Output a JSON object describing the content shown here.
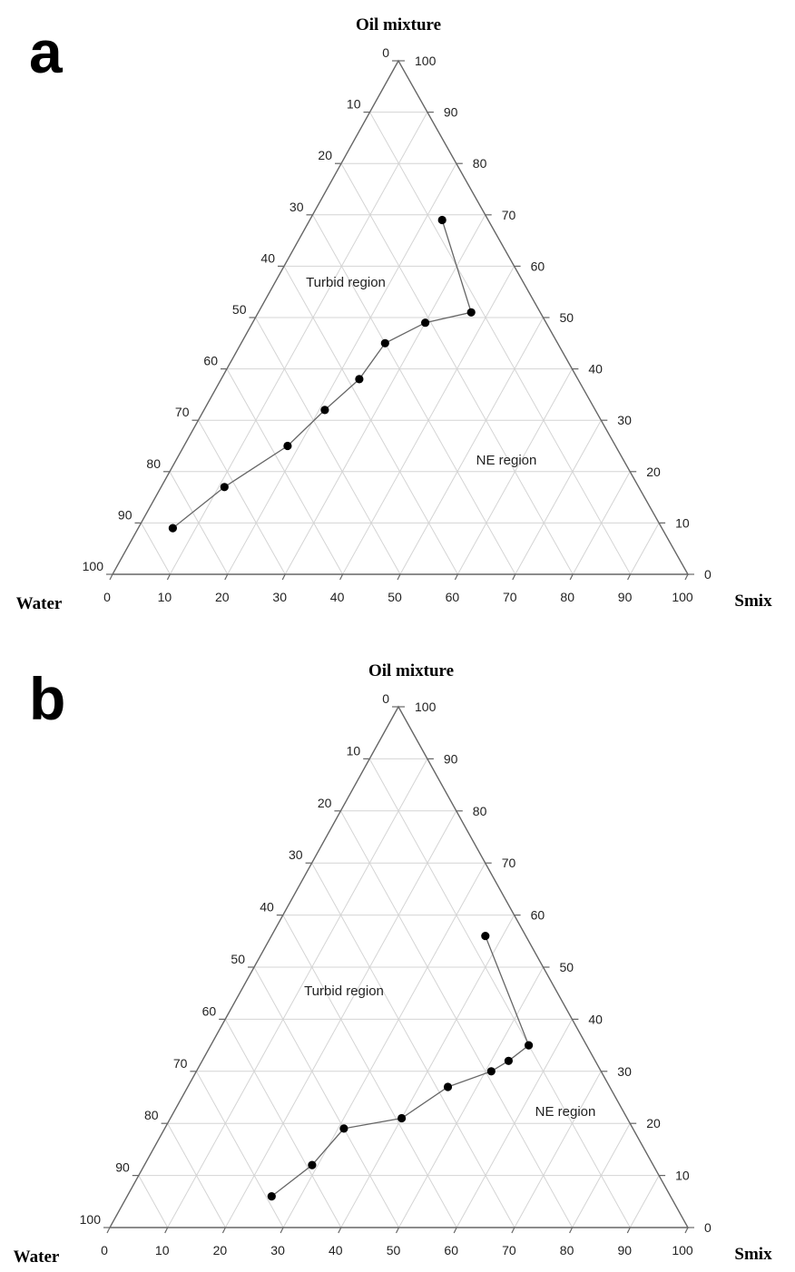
{
  "chart_data": [
    {
      "type": "scatter",
      "ternary": true,
      "panel_letter": "a",
      "vertex_labels": {
        "top": "Oil mixture",
        "left": "Water",
        "right": "Smix"
      },
      "axis_ticks": [
        "0",
        "10",
        "20",
        "30",
        "40",
        "50",
        "60",
        "70",
        "80",
        "90",
        "100"
      ],
      "grid": true,
      "region_labels": [
        "Turbid region",
        "NE region"
      ],
      "series": [
        {
          "points": [
            {
              "oil": 9,
              "smix": 6,
              "water": 85
            },
            {
              "oil": 17,
              "smix": 11,
              "water": 72
            },
            {
              "oil": 25,
              "smix": 18,
              "water": 57
            },
            {
              "oil": 32,
              "smix": 21,
              "water": 47
            },
            {
              "oil": 38,
              "smix": 24,
              "water": 38
            },
            {
              "oil": 45,
              "smix": 25,
              "water": 30
            },
            {
              "oil": 49,
              "smix": 30,
              "water": 21
            },
            {
              "oil": 51,
              "smix": 37,
              "water": 12
            },
            {
              "oil": 69,
              "smix": 23,
              "water": 8
            }
          ]
        }
      ]
    },
    {
      "type": "scatter",
      "ternary": true,
      "panel_letter": "b",
      "vertex_labels": {
        "top": "Oil mixture",
        "left": "Water",
        "right": "Smix"
      },
      "axis_ticks": [
        "0",
        "10",
        "20",
        "30",
        "40",
        "50",
        "60",
        "70",
        "80",
        "90",
        "100"
      ],
      "grid": true,
      "region_labels": [
        "Turbid region",
        "NE region"
      ],
      "series": [
        {
          "points": [
            {
              "oil": 6,
              "smix": 25,
              "water": 69
            },
            {
              "oil": 12,
              "smix": 29,
              "water": 59
            },
            {
              "oil": 19,
              "smix": 31,
              "water": 50
            },
            {
              "oil": 21,
              "smix": 40,
              "water": 39
            },
            {
              "oil": 27,
              "smix": 45,
              "water": 28
            },
            {
              "oil": 30,
              "smix": 51,
              "water": 19
            },
            {
              "oil": 32,
              "smix": 53,
              "water": 15
            },
            {
              "oil": 35,
              "smix": 55,
              "water": 10
            },
            {
              "oil": 56,
              "smix": 37,
              "water": 7
            }
          ]
        }
      ]
    }
  ]
}
